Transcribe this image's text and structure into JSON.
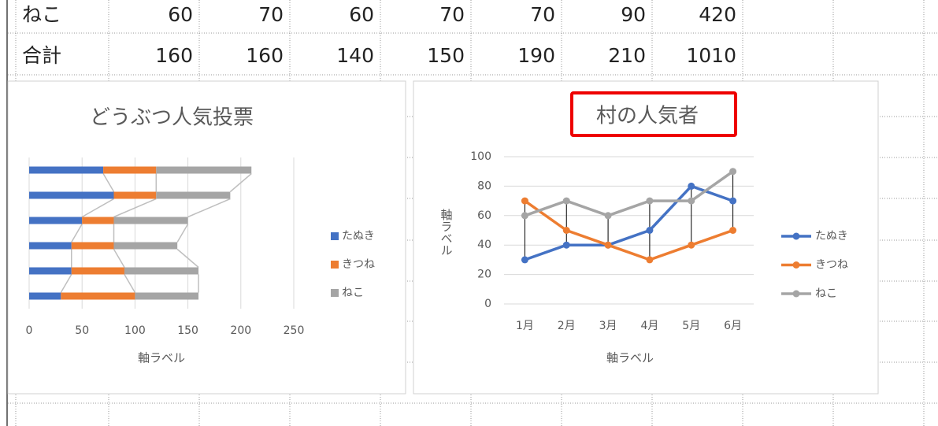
{
  "table": {
    "rows": [
      [
        "ねこ",
        60,
        70,
        60,
        70,
        70,
        90,
        420
      ],
      [
        "合計",
        160,
        160,
        140,
        150,
        190,
        210,
        1010
      ]
    ]
  },
  "chart_data": [
    {
      "type": "bar",
      "orientation": "horizontal",
      "stacked": true,
      "series_lines": true,
      "title": "どうぶつ人気投票",
      "xlabel": "軸ラベル",
      "categories": [
        null,
        null,
        null,
        null,
        null,
        null
      ],
      "series": [
        {
          "name": "たぬき",
          "color": "#4472c4",
          "values": [
            30,
            40,
            40,
            50,
            80,
            70
          ]
        },
        {
          "name": "きつね",
          "color": "#ed7d31",
          "values": [
            70,
            50,
            40,
            30,
            40,
            50
          ]
        },
        {
          "name": "ねこ",
          "color": "#a5a5a5",
          "values": [
            60,
            70,
            60,
            70,
            70,
            90
          ]
        }
      ],
      "xlim": [
        0,
        250
      ],
      "xticks": [
        0,
        50,
        100,
        150,
        200,
        250
      ],
      "grid": true,
      "legend": "right"
    },
    {
      "type": "line",
      "high_low_lines": true,
      "markers": true,
      "title": "村の人気者",
      "xlabel": "軸ラベル",
      "ylabel": "軸ラベル",
      "categories": [
        "1月",
        "2月",
        "3月",
        "4月",
        "5月",
        "6月"
      ],
      "series": [
        {
          "name": "たぬき",
          "color": "#4472c4",
          "values": [
            30,
            40,
            40,
            50,
            80,
            70
          ]
        },
        {
          "name": "きつね",
          "color": "#ed7d31",
          "values": [
            70,
            50,
            40,
            30,
            40,
            50
          ]
        },
        {
          "name": "ねこ",
          "color": "#a5a5a5",
          "values": [
            60,
            70,
            60,
            70,
            70,
            90
          ]
        }
      ],
      "ylim": [
        0,
        100
      ],
      "yticks": [
        0,
        20,
        40,
        60,
        80,
        100
      ],
      "grid": true,
      "legend": "right"
    }
  ]
}
